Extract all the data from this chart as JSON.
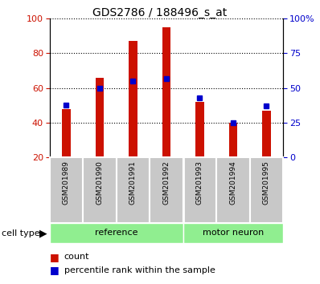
{
  "title": "GDS2786 / 188496_s_at",
  "samples": [
    "GSM201989",
    "GSM201990",
    "GSM201991",
    "GSM201992",
    "GSM201993",
    "GSM201994",
    "GSM201995"
  ],
  "count_values": [
    48,
    66,
    87,
    95,
    52,
    40,
    47
  ],
  "percentile_values": [
    38,
    50,
    55,
    57,
    43,
    25,
    37
  ],
  "bar_color": "#CC1100",
  "percentile_color": "#0000CC",
  "ylim_left": [
    20,
    100
  ],
  "ylim_right": [
    0,
    100
  ],
  "yticks_left": [
    20,
    40,
    60,
    80,
    100
  ],
  "yticks_right": [
    0,
    25,
    50,
    75,
    100
  ],
  "ytick_labels_right": [
    "0",
    "25",
    "50",
    "75",
    "100%"
  ],
  "tick_area_color": "#C8C8C8",
  "ref_color": "#90EE90",
  "ref_label": "reference",
  "mn_label": "motor neuron",
  "cell_type_label": "cell type",
  "ref_count": 4,
  "mn_count": 3
}
